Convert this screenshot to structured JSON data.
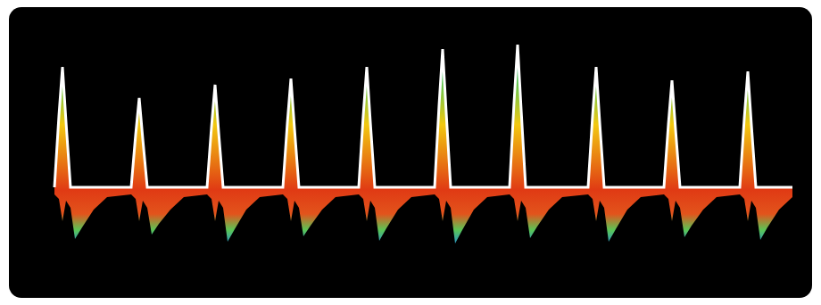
{
  "chart_data": {
    "type": "area",
    "tick_labels": false,
    "grid": false,
    "xlim": [
      10,
      910
    ],
    "ylim": [
      -121,
      205
    ],
    "x": [
      61,
      66,
      70,
      74,
      79,
      84,
      92,
      105,
      120,
      147,
      152,
      156,
      160,
      165,
      170,
      178,
      191,
      206,
      232,
      237,
      241,
      245,
      250,
      255,
      263,
      276,
      291,
      317,
      322,
      326,
      330,
      335,
      340,
      348,
      361,
      376,
      402,
      407,
      411,
      415,
      420,
      425,
      433,
      446,
      461,
      487,
      492,
      496,
      500,
      505,
      510,
      518,
      531,
      546,
      571,
      576,
      580,
      584,
      589,
      594,
      602,
      615,
      630,
      659,
      664,
      668,
      672,
      677,
      682,
      690,
      703,
      718,
      744,
      749,
      753,
      757,
      762,
      767,
      775,
      788,
      803,
      829,
      834,
      838,
      842,
      847,
      852,
      860,
      873,
      888
    ],
    "series": [
      {
        "color": "#f2c811",
        "values": [
          3,
          83,
          138,
          76,
          3,
          3,
          3,
          3,
          3,
          3,
          62,
          103,
          57,
          3,
          3,
          3,
          3,
          3,
          3,
          71,
          118,
          65,
          3,
          3,
          3,
          3,
          3,
          3,
          75,
          125,
          69,
          3,
          3,
          3,
          3,
          3,
          3,
          83,
          138,
          76,
          3,
          3,
          3,
          3,
          3,
          3,
          95,
          158,
          87,
          3,
          3,
          3,
          3,
          3,
          3,
          98,
          163,
          90,
          3,
          3,
          3,
          3,
          3,
          3,
          83,
          138,
          76,
          3,
          3,
          3,
          3,
          3,
          3,
          74,
          123,
          68,
          3,
          3,
          3,
          3,
          3,
          3,
          80,
          133,
          73,
          3,
          3,
          3,
          3,
          3
        ]
      },
      {
        "color": "#e2541c",
        "values": [
          -5,
          -10,
          -35,
          -12,
          -20,
          -55,
          -42,
          -22,
          -8,
          -5,
          -10,
          -35,
          -12,
          -20,
          -50,
          -38,
          -22,
          -8,
          -5,
          -10,
          -35,
          -12,
          -20,
          -58,
          -44,
          -22,
          -8,
          -5,
          -10,
          -35,
          -12,
          -20,
          -52,
          -40,
          -22,
          -8,
          -5,
          -10,
          -35,
          -12,
          -20,
          -57,
          -43,
          -22,
          -8,
          -5,
          -10,
          -35,
          -12,
          -20,
          -60,
          -45,
          -22,
          -8,
          -5,
          -10,
          -35,
          -12,
          -20,
          -54,
          -41,
          -22,
          -8,
          -5,
          -10,
          -35,
          -12,
          -20,
          -58,
          -44,
          -22,
          -8,
          -5,
          -10,
          -35,
          -12,
          -20,
          -53,
          -40,
          -22,
          -8,
          -5,
          -10,
          -35,
          -12,
          -20,
          -56,
          -42,
          -22,
          -8
        ]
      }
    ]
  }
}
